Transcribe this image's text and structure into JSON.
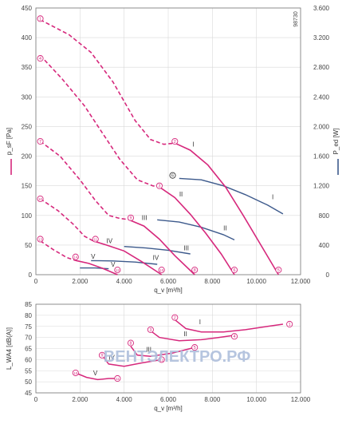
{
  "chart_data": [
    {
      "type": "line",
      "id": "pressure-power",
      "code": "98730",
      "xlabel": "q_v [m³/h]",
      "ylabel": "p_sF [Pa]",
      "y2label": "P_ed [W]",
      "xlim": [
        0,
        12000
      ],
      "ylim": [
        0,
        450
      ],
      "y2lim": [
        0,
        3600
      ],
      "xticks": [
        0,
        2000,
        4000,
        6000,
        8000,
        10000,
        12000
      ],
      "xtick_labels": [
        "0",
        "2.000",
        "4.000",
        "6.000",
        "8.000",
        "10.000",
        "12.000"
      ],
      "yticks": [
        0,
        50,
        100,
        150,
        200,
        250,
        300,
        350,
        400,
        450
      ],
      "ytick_labels": [
        "0",
        "50",
        "100",
        "150",
        "200",
        "250",
        "300",
        "350",
        "400",
        "450"
      ],
      "y2ticks": [
        0,
        400,
        800,
        1200,
        1600,
        2000,
        2400,
        2800,
        3200,
        3600
      ],
      "y2tick_labels": [
        "0",
        "400",
        "800",
        "1.200",
        "1.600",
        "2.000",
        "2.400",
        "2.800",
        "3.200",
        "3.600"
      ],
      "grid": true,
      "colors": {
        "pressure": "#d6287c",
        "power": "#3d5a8c",
        "point_marker": "#d6287c"
      },
      "pressure_series": [
        {
          "name": "I",
          "style": "dashed",
          "points": [
            [
              200,
              430
            ],
            [
              1500,
              405
            ],
            [
              2500,
              375
            ],
            [
              3500,
              325
            ],
            [
              4500,
              260
            ],
            [
              5200,
              228
            ],
            [
              5800,
              220
            ],
            [
              6300,
              222
            ]
          ]
        },
        {
          "name": "I",
          "style": "solid",
          "points": [
            [
              6300,
              222
            ],
            [
              7000,
              210
            ],
            [
              7800,
              185
            ],
            [
              8600,
              148
            ],
            [
              9400,
              100
            ],
            [
              10200,
              50
            ],
            [
              11000,
              0
            ]
          ]
        },
        {
          "name": "II",
          "style": "dashed",
          "points": [
            [
              200,
              370
            ],
            [
              1200,
              330
            ],
            [
              2200,
              285
            ],
            [
              3000,
              240
            ],
            [
              3800,
              195
            ],
            [
              4600,
              160
            ],
            [
              5300,
              150
            ],
            [
              5600,
              148
            ]
          ]
        },
        {
          "name": "II",
          "style": "solid",
          "points": [
            [
              5600,
              148
            ],
            [
              6300,
              130
            ],
            [
              7000,
              102
            ],
            [
              7700,
              70
            ],
            [
              8400,
              35
            ],
            [
              9000,
              0
            ]
          ]
        },
        {
          "name": "III",
          "style": "dashed",
          "points": [
            [
              200,
              225
            ],
            [
              1100,
              200
            ],
            [
              2000,
              160
            ],
            [
              2700,
              125
            ],
            [
              3300,
              100
            ],
            [
              3800,
              95
            ],
            [
              4200,
              93
            ]
          ]
        },
        {
          "name": "III",
          "style": "solid",
          "points": [
            [
              4200,
              93
            ],
            [
              4900,
              82
            ],
            [
              5600,
              60
            ],
            [
              6300,
              32
            ],
            [
              7200,
              0
            ]
          ]
        },
        {
          "name": "IV",
          "style": "dashed",
          "points": [
            [
              200,
              128
            ],
            [
              1000,
              108
            ],
            [
              1700,
              85
            ],
            [
              2200,
              65
            ],
            [
              2600,
              57
            ]
          ]
        },
        {
          "name": "IV",
          "style": "solid",
          "points": [
            [
              2600,
              57
            ],
            [
              3200,
              50
            ],
            [
              4000,
              40
            ],
            [
              4800,
              22
            ],
            [
              5700,
              0
            ]
          ]
        },
        {
          "name": "V",
          "style": "dashed",
          "points": [
            [
              200,
              57
            ],
            [
              800,
              42
            ],
            [
              1400,
              29
            ],
            [
              1800,
              24
            ]
          ]
        },
        {
          "name": "V",
          "style": "solid",
          "points": [
            [
              1800,
              24
            ],
            [
              2400,
              19
            ],
            [
              3000,
              11
            ],
            [
              3700,
              0
            ]
          ]
        }
      ],
      "power_series": [
        {
          "name": "I",
          "points": [
            [
              6500,
              1300
            ],
            [
              7500,
              1280
            ],
            [
              8500,
              1200
            ],
            [
              9500,
              1080
            ],
            [
              10500,
              940
            ],
            [
              11200,
              820
            ]
          ]
        },
        {
          "name": "II",
          "points": [
            [
              5500,
              740
            ],
            [
              6500,
              710
            ],
            [
              7500,
              640
            ],
            [
              8500,
              540
            ],
            [
              9000,
              470
            ]
          ]
        },
        {
          "name": "III",
          "points": [
            [
              4000,
              380
            ],
            [
              5000,
              360
            ],
            [
              6000,
              330
            ],
            [
              7000,
              280
            ]
          ]
        },
        {
          "name": "IV",
          "points": [
            [
              2500,
              190
            ],
            [
              3500,
              185
            ],
            [
              4500,
              170
            ],
            [
              5500,
              140
            ]
          ]
        },
        {
          "name": "V",
          "points": [
            [
              2000,
              90
            ],
            [
              2700,
              90
            ],
            [
              3300,
              80
            ]
          ]
        }
      ],
      "operating_points": [
        {
          "label": "1",
          "x": 200,
          "y": 432
        },
        {
          "label": "2",
          "x": 6300,
          "y": 225
        },
        {
          "label": "3",
          "x": 5600,
          "y": 150
        },
        {
          "label": "4",
          "x": 200,
          "y": 365
        },
        {
          "label": "5",
          "x": 11000,
          "y": 8
        },
        {
          "label": "6",
          "x": 9000,
          "y": 8
        },
        {
          "label": "7",
          "x": 200,
          "y": 225
        },
        {
          "label": "8",
          "x": 7200,
          "y": 8
        },
        {
          "label": "9",
          "x": 4300,
          "y": 96
        },
        {
          "label": "10",
          "x": 200,
          "y": 128
        },
        {
          "label": "10",
          "x": 5700,
          "y": 8
        },
        {
          "label": "11",
          "x": 2700,
          "y": 60
        },
        {
          "label": "12",
          "x": 3700,
          "y": 8
        },
        {
          "label": "13",
          "x": 200,
          "y": 60
        },
        {
          "label": "14",
          "x": 1800,
          "y": 30
        }
      ],
      "power_marker": {
        "label": "6",
        "x": 6200,
        "y": 1340
      },
      "curve_labels": [
        {
          "text": "I",
          "series": "pressure",
          "x": 7100,
          "y": 216
        },
        {
          "text": "II",
          "series": "pressure",
          "x": 6500,
          "y": 132
        },
        {
          "text": "III",
          "series": "pressure",
          "x": 4800,
          "y": 92
        },
        {
          "text": "IV",
          "series": "pressure",
          "x": 3200,
          "y": 53
        },
        {
          "text": "V",
          "series": "pressure",
          "x": 2500,
          "y": 27
        },
        {
          "text": "I",
          "series": "power",
          "x": 10700,
          "y": 1020
        },
        {
          "text": "II",
          "series": "power",
          "x": 8500,
          "y": 600
        },
        {
          "text": "III",
          "series": "power",
          "x": 6700,
          "y": 330
        },
        {
          "text": "IV",
          "series": "power",
          "x": 5300,
          "y": 200
        },
        {
          "text": "V",
          "series": "power",
          "x": 3400,
          "y": 110
        }
      ]
    },
    {
      "type": "line",
      "id": "sound",
      "xlabel": "q_v [m³/h]",
      "ylabel": "L_WA4 [dB(A)]",
      "xlim": [
        0,
        12000
      ],
      "ylim": [
        45,
        85
      ],
      "xticks": [
        0,
        2000,
        4000,
        6000,
        8000,
        10000,
        12000
      ],
      "xtick_labels": [
        "0",
        "2.000",
        "4.000",
        "6.000",
        "8.000",
        "10.000",
        "12.000"
      ],
      "yticks": [
        45,
        50,
        55,
        60,
        65,
        70,
        75,
        80,
        85
      ],
      "ytick_labels": [
        "45",
        "50",
        "55",
        "60",
        "65",
        "70",
        "75",
        "80",
        "85"
      ],
      "grid": true,
      "color": "#d6287c",
      "series": [
        {
          "name": "I",
          "points": [
            [
              6300,
              78
            ],
            [
              6800,
              74
            ],
            [
              7500,
              72.5
            ],
            [
              8500,
              72.5
            ],
            [
              9500,
              73.5
            ],
            [
              10500,
              75
            ],
            [
              11200,
              76
            ]
          ]
        },
        {
          "name": "II",
          "points": [
            [
              5200,
              73
            ],
            [
              5600,
              70
            ],
            [
              6500,
              68.5
            ],
            [
              7500,
              69
            ],
            [
              8300,
              70
            ],
            [
              9000,
              71
            ]
          ]
        },
        {
          "name": "III",
          "points": [
            [
              4300,
              66
            ],
            [
              4600,
              62
            ],
            [
              5200,
              61.5
            ],
            [
              6200,
              63
            ],
            [
              7200,
              65.5
            ]
          ]
        },
        {
          "name": "IV",
          "points": [
            [
              3000,
              62
            ],
            [
              3300,
              58
            ],
            [
              4000,
              57
            ],
            [
              4800,
              58.5
            ],
            [
              5700,
              60
            ]
          ]
        },
        {
          "name": "V",
          "points": [
            [
              1800,
              54
            ],
            [
              2300,
              52
            ],
            [
              2800,
              51
            ],
            [
              3300,
              51.5
            ],
            [
              3700,
              51.5
            ]
          ]
        }
      ],
      "operating_points": [
        {
          "label": "1",
          "x": 11500,
          "y": 76
        },
        {
          "label": "2",
          "x": 6300,
          "y": 79
        },
        {
          "label": "3",
          "x": 5200,
          "y": 73.5
        },
        {
          "label": "4",
          "x": 9000,
          "y": 70.5
        },
        {
          "label": "5",
          "x": 7200,
          "y": 65.5
        },
        {
          "label": "8",
          "x": 4300,
          "y": 67.5
        },
        {
          "label": "9",
          "x": 3000,
          "y": 62
        },
        {
          "label": "10",
          "x": 1800,
          "y": 54
        },
        {
          "label": "11",
          "x": 3700,
          "y": 51.5
        },
        {
          "label": "12",
          "x": 5700,
          "y": 60
        }
      ],
      "curve_labels": [
        {
          "text": "I",
          "x": 7400,
          "y": 76
        },
        {
          "text": "II",
          "x": 6700,
          "y": 70.5
        },
        {
          "text": "III",
          "x": 5000,
          "y": 63.5
        },
        {
          "text": "IV",
          "x": 3300,
          "y": 60
        },
        {
          "text": "V",
          "x": 2600,
          "y": 53
        }
      ],
      "watermark": {
        "text": "ВЕНТЭЛЕКТРО.РФ",
        "color_main": "#aebfdc",
        "color_accent": "#f1b9b9"
      }
    }
  ]
}
